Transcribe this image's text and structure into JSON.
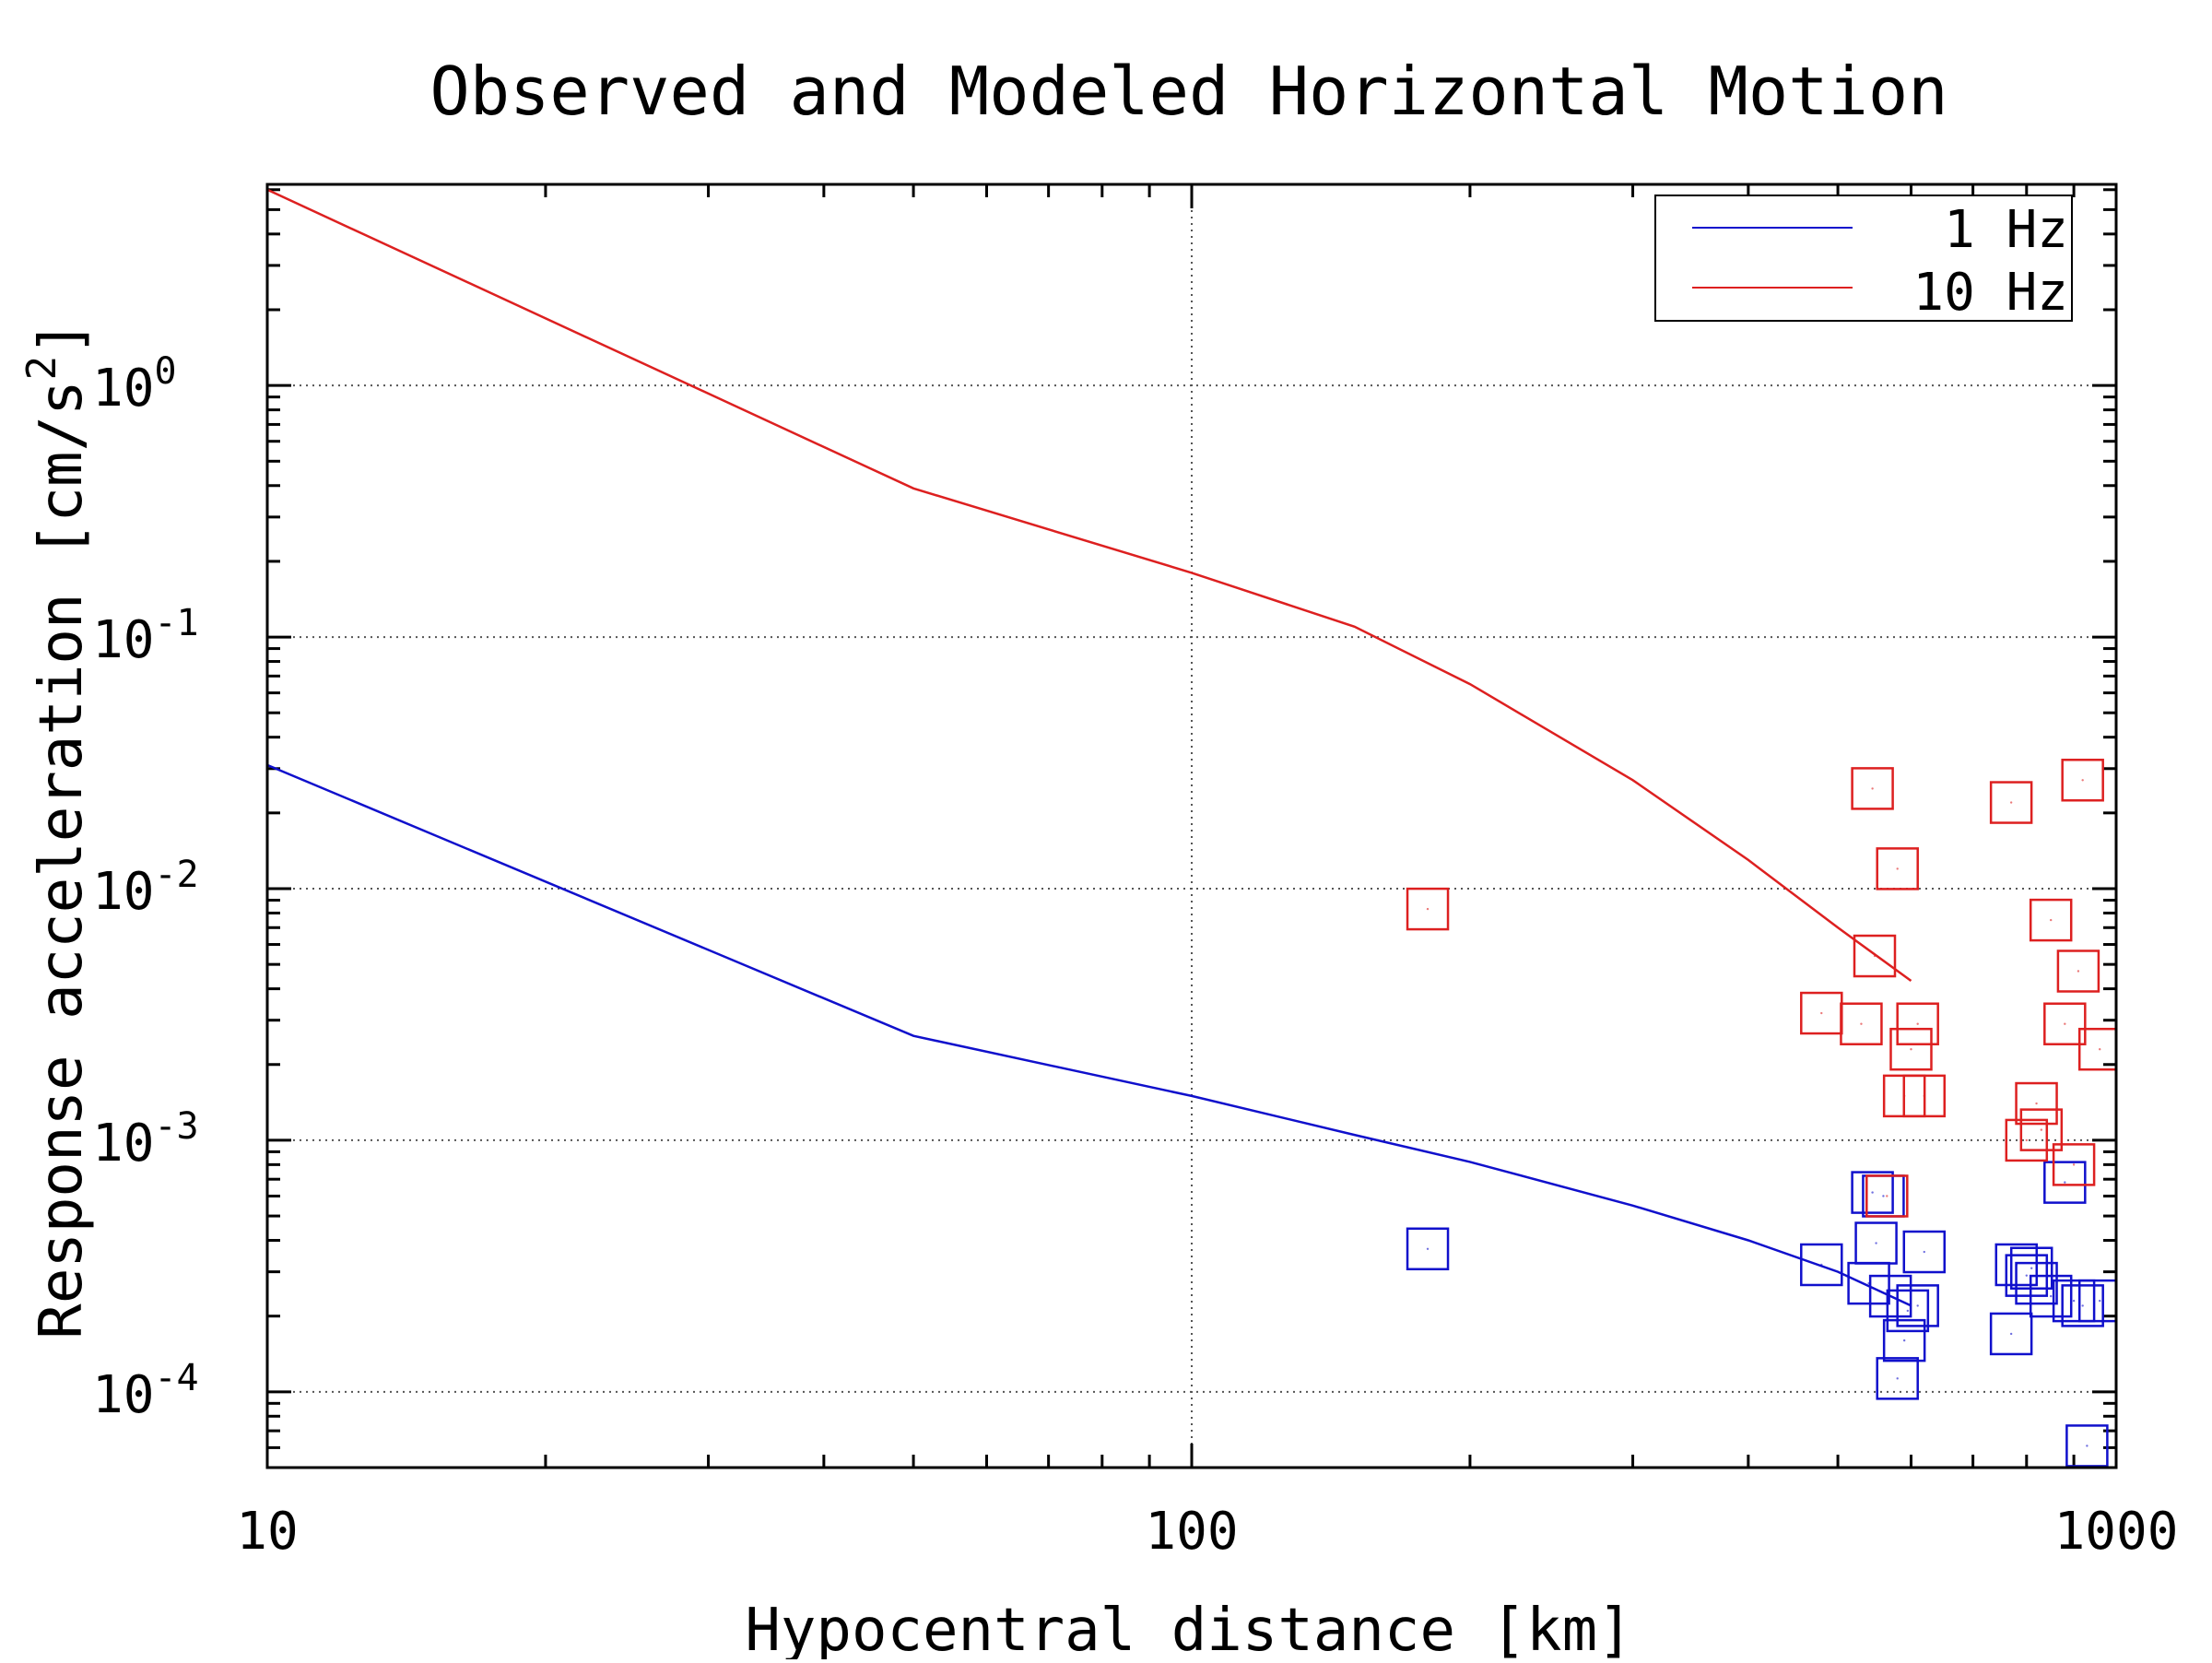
{
  "chart_data": {
    "type": "scatter",
    "title": "Observed and Modeled Horizontal Motion",
    "xlabel": "Hypocentral distance [km]",
    "ylabel_main": "Response acceleration [cm/s",
    "ylabel_sup": "2",
    "ylabel_close": "]",
    "x_scale": "log",
    "y_scale": "log",
    "xlim": [
      10,
      1000
    ],
    "ylim": [
      5e-05,
      6.3
    ],
    "x_ticks": [
      {
        "value": 10,
        "label": "10"
      },
      {
        "value": 100,
        "label": "100"
      },
      {
        "value": 1000,
        "label": "1000"
      }
    ],
    "y_ticks": [
      {
        "value": 0.0001,
        "base": "10",
        "exp": "-4"
      },
      {
        "value": 0.001,
        "base": "10",
        "exp": "-3"
      },
      {
        "value": 0.01,
        "base": "10",
        "exp": "-2"
      },
      {
        "value": 0.1,
        "base": "10",
        "exp": "-1"
      },
      {
        "value": 1,
        "base": "10",
        "exp": "0"
      }
    ],
    "grid": true,
    "legend_position": "top-right",
    "series": [
      {
        "name": "1 Hz",
        "color": "#1010cc",
        "line": {
          "x": [
            10,
            50,
            100,
            150,
            200,
            300,
            400,
            500,
            600
          ],
          "y": [
            0.031,
            0.0026,
            0.0015,
            0.00105,
            0.00082,
            0.00055,
            0.0004,
            0.0003,
            0.00022
          ]
        },
        "points": {
          "x": [
            180,
            480,
            540,
            545,
            550,
            560,
            570,
            580,
            590,
            595,
            610,
            620,
            770,
            780,
            800,
            810,
            820,
            850,
            880,
            900,
            920,
            930,
            960
          ],
          "y": [
            0.00037,
            0.00032,
            0.00027,
            0.00062,
            0.00039,
            0.0006,
            0.00024,
            0.000113,
            0.00016,
            0.00021,
            0.00022,
            0.00036,
            0.00017,
            0.00032,
            0.00029,
            0.00031,
            0.00027,
            0.00024,
            0.00068,
            0.00023,
            0.00022,
            6.1e-05,
            0.00023
          ]
        }
      },
      {
        "name": "10 Hz",
        "color": "#dd2020",
        "line": {
          "x": [
            10,
            50,
            100,
            150,
            200,
            300,
            400,
            500,
            600
          ],
          "y": [
            6.0,
            0.39,
            0.18,
            0.11,
            0.065,
            0.027,
            0.013,
            0.007,
            0.0043
          ]
        },
        "points": {
          "x": [
            180,
            480,
            530,
            545,
            548,
            565,
            580,
            590,
            600,
            610,
            620,
            770,
            800,
            820,
            830,
            850,
            880,
            900,
            910,
            920,
            960
          ],
          "y": [
            0.0083,
            0.0032,
            0.0029,
            0.025,
            0.0054,
            0.0006,
            0.012,
            0.0015,
            0.0023,
            0.0029,
            0.0015,
            0.022,
            0.001,
            0.0014,
            0.0011,
            0.0075,
            0.0029,
            0.0008,
            0.0047,
            0.027,
            0.0023
          ]
        }
      }
    ]
  }
}
